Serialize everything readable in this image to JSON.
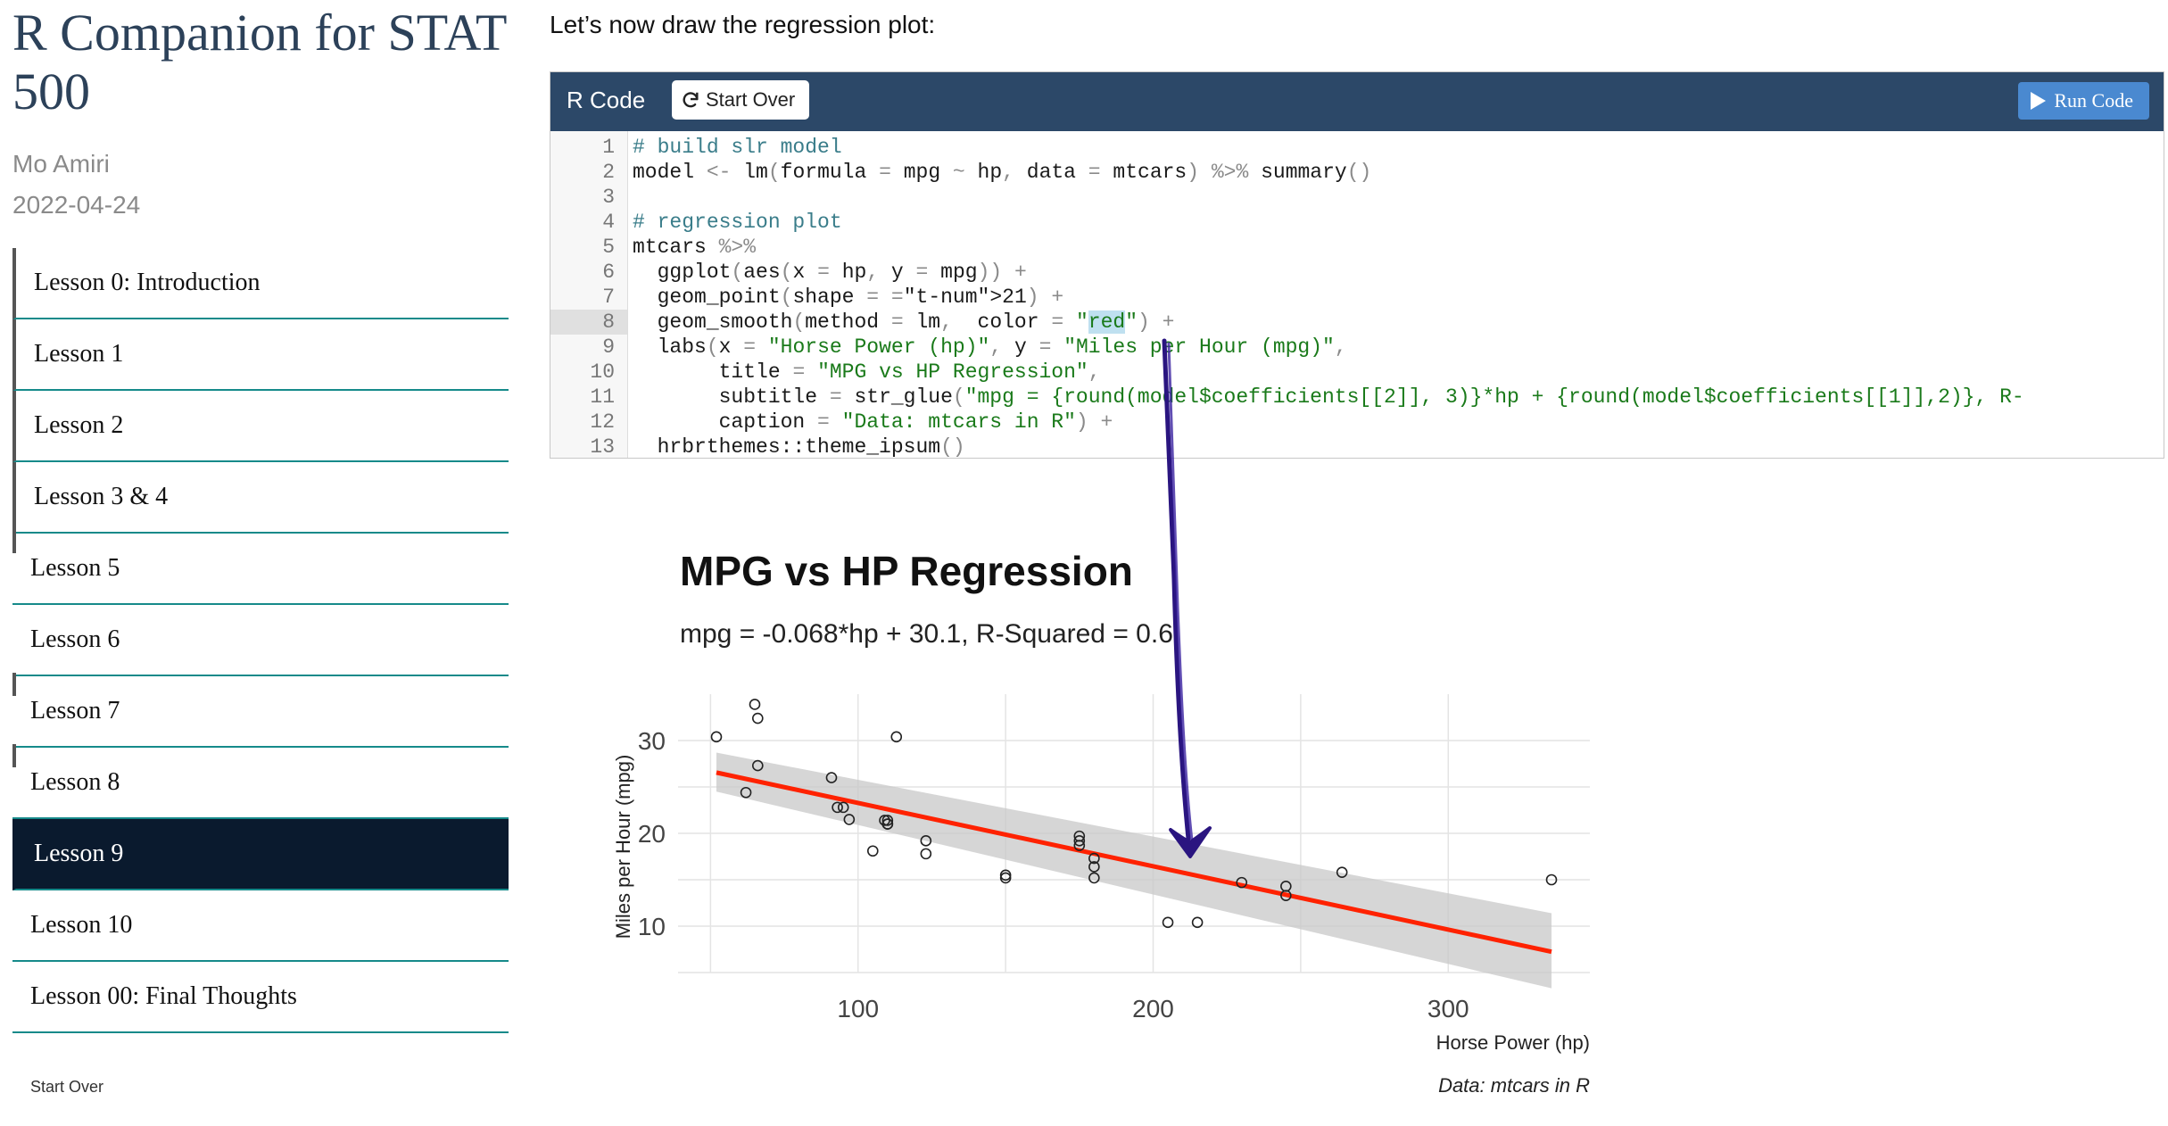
{
  "sidebar": {
    "title": "R Companion for STAT 500",
    "author": "Mo Amiri",
    "date": "2022-04-24",
    "items": [
      {
        "label": "Lesson 0: Introduction"
      },
      {
        "label": "Lesson 1"
      },
      {
        "label": "Lesson 2"
      },
      {
        "label": "Lesson 3 & 4"
      },
      {
        "label": "Lesson 5"
      },
      {
        "label": "Lesson 6"
      },
      {
        "label": "Lesson 7"
      },
      {
        "label": "Lesson 8"
      },
      {
        "label": "Lesson 9"
      },
      {
        "label": "Lesson 10"
      },
      {
        "label": "Lesson 00: Final Thoughts"
      }
    ],
    "active_item": "Lesson 9",
    "footer": "Start Over"
  },
  "main": {
    "intro_text": "Let’s now draw the regression plot:",
    "editor": {
      "title": "R Code",
      "start_over_label": "Start Over",
      "run_label": "Run Code",
      "highlighted_line": 8,
      "lines": [
        {
          "n": "1",
          "code": "# build slr model"
        },
        {
          "n": "2",
          "code": "model <- lm(formula = mpg ~ hp, data = mtcars) %>% summary()"
        },
        {
          "n": "3",
          "code": ""
        },
        {
          "n": "4",
          "code": "# regression plot"
        },
        {
          "n": "5",
          "code": "mtcars %>%"
        },
        {
          "n": "6",
          "code": "  ggplot(aes(x = hp, y = mpg)) +"
        },
        {
          "n": "7",
          "code": "  geom_point(shape = 21) +"
        },
        {
          "n": "8",
          "code": "  geom_smooth(method = lm,  color = \"red\") +"
        },
        {
          "n": "9",
          "code": "  labs(x = \"Horse Power (hp)\", y = \"Miles per Hour (mpg)\","
        },
        {
          "n": "10",
          "code": "       title = \"MPG vs HP Regression\","
        },
        {
          "n": "11",
          "code": "       subtitle = str_glue(\"mpg = {round(model$coefficients[[2]], 3)}*hp + {round(model$coefficients[[1]],2)}, R-"
        },
        {
          "n": "12",
          "code": "       caption = \"Data: mtcars in R\") +"
        },
        {
          "n": "13",
          "code": "  hrbrthemes::theme_ipsum()"
        }
      ]
    }
  },
  "colors": {
    "accent_teal": "#168a8a",
    "active_bg": "#0a1a2e",
    "editor_header": "#2c4868",
    "run_button": "#4a89d0",
    "regression_line": "#ff2200",
    "annotation_arrow": "#2a1580"
  },
  "icons": {
    "start_over": "refresh-icon",
    "run": "play-icon"
  },
  "chart_data": {
    "type": "scatter",
    "title": "MPG vs HP Regression",
    "subtitle": "mpg = -0.068*hp + 30.1, R-Squared = 0.6",
    "xlabel": "Horse Power (hp)",
    "ylabel": "Miles per Hour (mpg)",
    "caption": "Data: mtcars in R",
    "xlim": [
      39,
      348
    ],
    "ylim": [
      5,
      35
    ],
    "xticks": [
      100,
      200,
      300
    ],
    "yticks": [
      10,
      20,
      30
    ],
    "grid": true,
    "points": [
      [
        110,
        21.0
      ],
      [
        110,
        21.0
      ],
      [
        93,
        22.8
      ],
      [
        110,
        21.4
      ],
      [
        175,
        18.7
      ],
      [
        105,
        18.1
      ],
      [
        245,
        14.3
      ],
      [
        62,
        24.4
      ],
      [
        95,
        22.8
      ],
      [
        123,
        19.2
      ],
      [
        123,
        17.8
      ],
      [
        180,
        16.4
      ],
      [
        180,
        17.3
      ],
      [
        180,
        15.2
      ],
      [
        205,
        10.4
      ],
      [
        215,
        10.4
      ],
      [
        230,
        14.7
      ],
      [
        66,
        32.4
      ],
      [
        52,
        30.4
      ],
      [
        65,
        33.9
      ],
      [
        97,
        21.5
      ],
      [
        150,
        15.5
      ],
      [
        150,
        15.2
      ],
      [
        245,
        13.3
      ],
      [
        175,
        19.2
      ],
      [
        66,
        27.3
      ],
      [
        91,
        26.0
      ],
      [
        113,
        30.4
      ],
      [
        264,
        15.8
      ],
      [
        175,
        19.7
      ],
      [
        335,
        15.0
      ],
      [
        109,
        21.4
      ]
    ],
    "fit": {
      "slope": -0.06823,
      "intercept": 30.0989,
      "x_range": [
        52,
        335
      ]
    },
    "confidence_band": {
      "x": [
        52,
        335
      ],
      "lower": [
        24.5,
        3.3
      ],
      "upper": [
        28.7,
        11.4
      ]
    }
  }
}
